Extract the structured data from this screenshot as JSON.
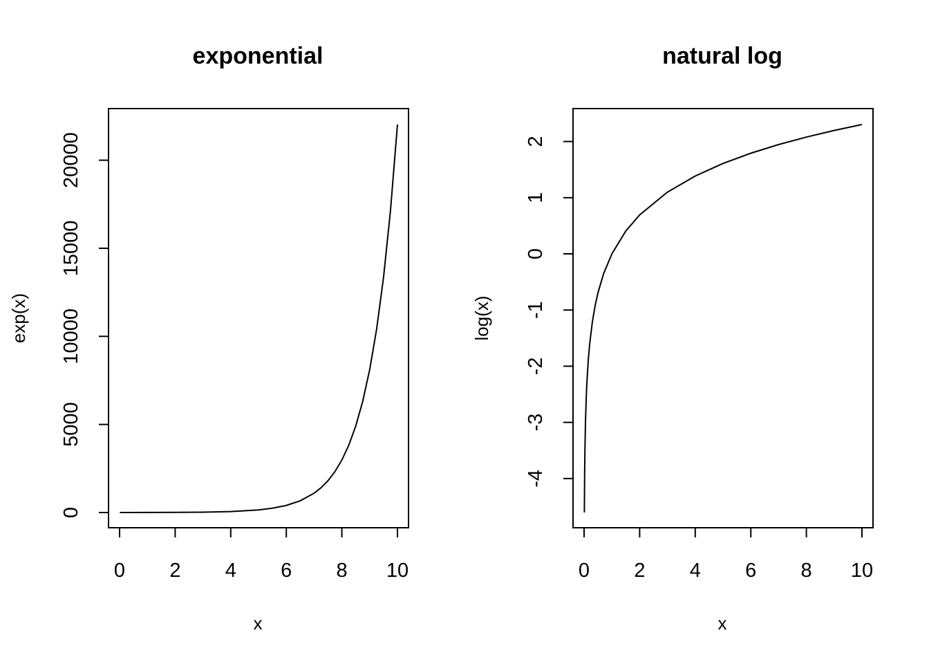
{
  "chart_data": [
    {
      "type": "line",
      "title": "exponential",
      "xlabel": "x",
      "ylabel": "exp(x)",
      "xlim": [
        0,
        10
      ],
      "ylim": [
        0,
        22026.47
      ],
      "xticks": [
        0,
        2,
        4,
        6,
        8,
        10
      ],
      "yticks": [
        0,
        5000,
        10000,
        15000,
        20000
      ],
      "grid": false,
      "series": [
        {
          "x": [
            0.01,
            1,
            2,
            3,
            4,
            5,
            5.5,
            6,
            6.5,
            7,
            7.25,
            7.5,
            7.75,
            8,
            8.25,
            8.5,
            8.75,
            9,
            9.25,
            9.5,
            9.75,
            10
          ],
          "values": [
            1.01,
            2.72,
            7.39,
            20.09,
            54.6,
            148.41,
            244.69,
            403.43,
            665.14,
            1096.63,
            1408.1,
            1808.04,
            2321.57,
            2980.96,
            3827.63,
            4914.77,
            6310.69,
            8103.08,
            10404.57,
            13359.73,
            17154.23,
            22026.47
          ]
        }
      ]
    },
    {
      "type": "line",
      "title": "natural log",
      "xlabel": "x",
      "ylabel": "log(x)",
      "xlim": [
        0,
        10
      ],
      "ylim": [
        -4.605,
        2.303
      ],
      "xticks": [
        0,
        2,
        4,
        6,
        8,
        10
      ],
      "yticks": [
        -4,
        -3,
        -2,
        -1,
        0,
        1,
        2
      ],
      "grid": false,
      "series": [
        {
          "x": [
            0.01,
            0.02,
            0.03,
            0.05,
            0.08,
            0.1,
            0.15,
            0.2,
            0.3,
            0.4,
            0.5,
            0.7,
            1,
            1.5,
            2,
            3,
            4,
            5,
            6,
            7,
            8,
            9,
            10
          ],
          "values": [
            -4.605,
            -3.912,
            -3.507,
            -2.996,
            -2.526,
            -2.303,
            -1.897,
            -1.609,
            -1.204,
            -0.916,
            -0.693,
            -0.357,
            0,
            0.405,
            0.693,
            1.099,
            1.386,
            1.609,
            1.792,
            1.946,
            2.079,
            2.197,
            2.303
          ]
        }
      ]
    }
  ]
}
